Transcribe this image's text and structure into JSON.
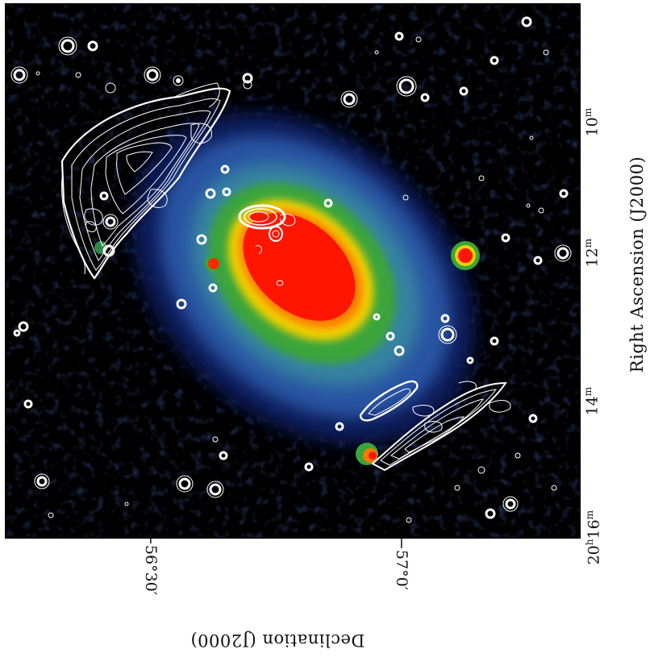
{
  "figure": {
    "description_free": true,
    "colors": {
      "background": "#000000",
      "contour": "#ffffff",
      "core": "#ff1a00",
      "yellow": "#ffd400",
      "green": "#3fae3a",
      "blue": "#3a74c8",
      "navy": "#11205a"
    }
  },
  "axes": {
    "ra_title": "Right Ascension (J2000)",
    "dec_title": "Declination (J2000)",
    "ra_ticks": [
      {
        "hours": "",
        "minutes": "10",
        "sup": "m"
      },
      {
        "hours": "",
        "minutes": "12",
        "sup": "m"
      },
      {
        "hours": "",
        "minutes": "14",
        "sup": "m"
      },
      {
        "hours": "20",
        "hsup": "h",
        "minutes": "16",
        "sup": "m"
      }
    ],
    "dec_ticks": [
      "−56°30′",
      "−57°0′"
    ]
  }
}
